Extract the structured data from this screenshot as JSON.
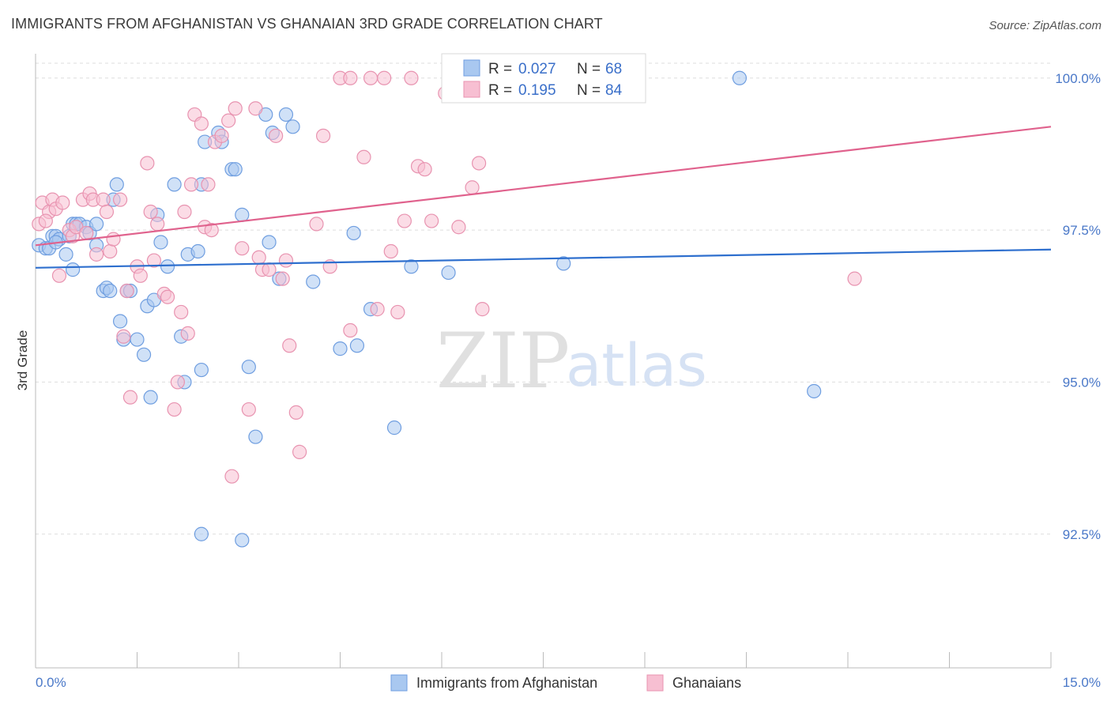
{
  "header": {
    "title": "IMMIGRANTS FROM AFGHANISTAN VS GHANAIAN 3RD GRADE CORRELATION CHART",
    "source": "Source: ZipAtlas.com"
  },
  "legend": {
    "r_label": "R =",
    "n_label": "N =",
    "series": [
      {
        "r": "0.027",
        "n": "68",
        "color": "#a9c8f0",
        "stroke": "#6f9ee0"
      },
      {
        "r": "0.195",
        "n": "84",
        "color": "#f7bfd2",
        "stroke": "#e893b0"
      }
    ]
  },
  "bottom_legend": [
    {
      "label": "Immigrants from Afghanistan"
    },
    {
      "label": "Ghanaians"
    }
  ],
  "watermark": {
    "zip": "ZIP",
    "atlas": "atlas"
  },
  "chart_data": {
    "type": "scatter",
    "title": "IMMIGRANTS FROM AFGHANISTAN VS GHANAIAN 3RD GRADE CORRELATION CHART",
    "xlabel": "",
    "ylabel": "3rd Grade",
    "xlim": [
      0,
      15
    ],
    "ylim": [
      90.3,
      100.4
    ],
    "x_tick_labels": [
      "0.0%",
      "15.0%"
    ],
    "y_ticks": [
      92.5,
      95.0,
      97.5,
      100.0
    ],
    "y_tick_labels": [
      "92.5%",
      "95.0%",
      "97.5%",
      "100.0%"
    ],
    "grid": true,
    "legend_position": "top-center",
    "series": [
      {
        "name": "Immigrants from Afghanistan",
        "color": "#a9c8f0",
        "line_color": "#2e6fce",
        "trend": [
          [
            0,
            96.88
          ],
          [
            15,
            97.18
          ]
        ],
        "points": [
          [
            0.05,
            97.25
          ],
          [
            0.15,
            97.2
          ],
          [
            0.2,
            97.2
          ],
          [
            0.25,
            97.4
          ],
          [
            0.3,
            97.4
          ],
          [
            0.35,
            97.35
          ],
          [
            0.45,
            97.1
          ],
          [
            0.5,
            97.4
          ],
          [
            0.55,
            97.6
          ],
          [
            0.6,
            97.6
          ],
          [
            0.65,
            97.6
          ],
          [
            0.75,
            97.55
          ],
          [
            0.8,
            97.45
          ],
          [
            0.9,
            97.25
          ],
          [
            1.0,
            96.5
          ],
          [
            1.05,
            96.55
          ],
          [
            1.1,
            96.5
          ],
          [
            1.15,
            98.0
          ],
          [
            1.2,
            98.25
          ],
          [
            1.25,
            96.0
          ],
          [
            1.3,
            95.7
          ],
          [
            1.35,
            96.5
          ],
          [
            1.4,
            96.5
          ],
          [
            1.5,
            95.7
          ],
          [
            1.6,
            95.45
          ],
          [
            1.65,
            96.25
          ],
          [
            1.7,
            94.75
          ],
          [
            1.75,
            96.35
          ],
          [
            1.8,
            97.75
          ],
          [
            1.85,
            97.3
          ],
          [
            1.95,
            96.9
          ],
          [
            2.05,
            98.25
          ],
          [
            2.15,
            95.75
          ],
          [
            2.2,
            95.0
          ],
          [
            2.25,
            97.1
          ],
          [
            2.45,
            98.25
          ],
          [
            2.4,
            97.15
          ],
          [
            2.45,
            95.2
          ],
          [
            2.5,
            98.95
          ],
          [
            2.7,
            99.1
          ],
          [
            2.75,
            98.95
          ],
          [
            2.9,
            98.5
          ],
          [
            2.95,
            98.5
          ],
          [
            3.05,
            97.75
          ],
          [
            3.15,
            95.25
          ],
          [
            3.25,
            94.1
          ],
          [
            3.4,
            99.4
          ],
          [
            3.45,
            97.3
          ],
          [
            3.5,
            99.1
          ],
          [
            3.6,
            96.7
          ],
          [
            3.7,
            99.4
          ],
          [
            3.8,
            99.2
          ],
          [
            4.1,
            96.65
          ],
          [
            4.5,
            95.55
          ],
          [
            4.7,
            97.45
          ],
          [
            4.75,
            95.6
          ],
          [
            4.95,
            96.2
          ],
          [
            5.3,
            94.25
          ],
          [
            5.55,
            96.9
          ],
          [
            6.1,
            96.8
          ],
          [
            2.45,
            92.5
          ],
          [
            3.05,
            92.4
          ],
          [
            7.8,
            96.95
          ],
          [
            10.4,
            100.0
          ],
          [
            11.5,
            94.85
          ],
          [
            0.3,
            97.3
          ],
          [
            0.55,
            96.85
          ],
          [
            0.9,
            97.6
          ]
        ]
      },
      {
        "name": "Ghanaians",
        "color": "#f7bfd2",
        "line_color": "#e0628d",
        "trend": [
          [
            0,
            97.25
          ],
          [
            15,
            99.2
          ]
        ],
        "points": [
          [
            0.05,
            97.6
          ],
          [
            0.1,
            97.95
          ],
          [
            0.2,
            97.8
          ],
          [
            0.25,
            98.0
          ],
          [
            0.3,
            97.85
          ],
          [
            0.35,
            96.75
          ],
          [
            0.5,
            97.5
          ],
          [
            0.55,
            97.4
          ],
          [
            0.6,
            97.55
          ],
          [
            0.7,
            98.0
          ],
          [
            0.8,
            98.1
          ],
          [
            0.85,
            98.0
          ],
          [
            0.9,
            97.1
          ],
          [
            1.0,
            98.0
          ],
          [
            1.05,
            97.8
          ],
          [
            1.1,
            97.15
          ],
          [
            1.15,
            97.35
          ],
          [
            1.25,
            98.0
          ],
          [
            1.3,
            95.75
          ],
          [
            1.35,
            96.5
          ],
          [
            1.4,
            94.75
          ],
          [
            1.5,
            96.9
          ],
          [
            1.55,
            96.75
          ],
          [
            1.65,
            98.6
          ],
          [
            1.7,
            97.8
          ],
          [
            1.75,
            97.0
          ],
          [
            1.8,
            97.6
          ],
          [
            1.9,
            96.45
          ],
          [
            1.95,
            96.4
          ],
          [
            2.05,
            94.55
          ],
          [
            2.1,
            95.0
          ],
          [
            2.15,
            96.15
          ],
          [
            2.2,
            97.8
          ],
          [
            2.25,
            95.8
          ],
          [
            2.35,
            99.4
          ],
          [
            2.45,
            99.25
          ],
          [
            2.5,
            97.55
          ],
          [
            2.55,
            98.25
          ],
          [
            2.6,
            97.5
          ],
          [
            2.65,
            98.95
          ],
          [
            2.75,
            99.05
          ],
          [
            2.85,
            99.3
          ],
          [
            2.9,
            93.45
          ],
          [
            2.95,
            99.5
          ],
          [
            3.05,
            97.2
          ],
          [
            3.15,
            94.55
          ],
          [
            3.25,
            99.5
          ],
          [
            3.35,
            96.85
          ],
          [
            3.45,
            96.85
          ],
          [
            3.55,
            99.05
          ],
          [
            3.65,
            96.7
          ],
          [
            3.7,
            97.0
          ],
          [
            3.75,
            95.6
          ],
          [
            3.85,
            94.5
          ],
          [
            3.9,
            93.85
          ],
          [
            4.15,
            97.6
          ],
          [
            4.25,
            99.05
          ],
          [
            4.35,
            96.9
          ],
          [
            4.5,
            100.0
          ],
          [
            4.65,
            100.0
          ],
          [
            4.85,
            98.7
          ],
          [
            4.95,
            100.0
          ],
          [
            5.05,
            96.2
          ],
          [
            5.15,
            100.0
          ],
          [
            5.25,
            97.15
          ],
          [
            5.35,
            96.15
          ],
          [
            5.45,
            97.65
          ],
          [
            5.55,
            100.0
          ],
          [
            5.65,
            98.55
          ],
          [
            5.75,
            98.5
          ],
          [
            5.85,
            97.65
          ],
          [
            6.05,
            99.75
          ],
          [
            6.25,
            97.55
          ],
          [
            6.45,
            98.2
          ],
          [
            6.55,
            98.6
          ],
          [
            6.6,
            96.2
          ],
          [
            6.8,
            100.0
          ],
          [
            4.65,
            95.85
          ],
          [
            12.1,
            96.7
          ],
          [
            0.15,
            97.65
          ],
          [
            0.4,
            97.95
          ],
          [
            0.75,
            97.45
          ],
          [
            2.3,
            98.25
          ],
          [
            3.3,
            97.05
          ]
        ]
      }
    ]
  }
}
